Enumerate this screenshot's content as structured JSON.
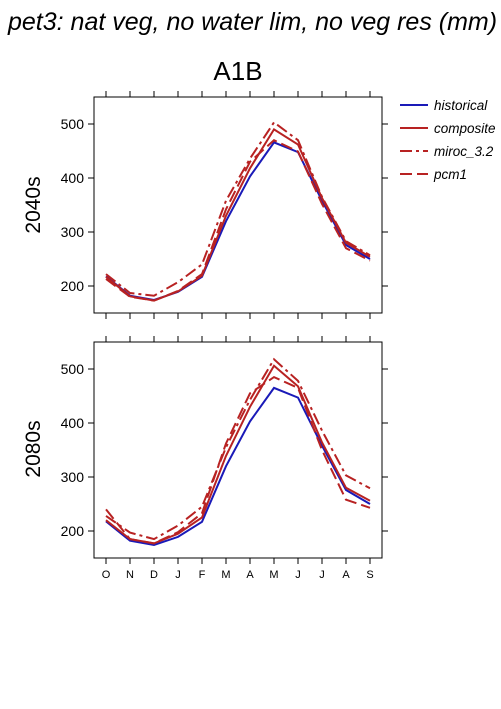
{
  "figure": {
    "title": "pet3: nat veg, no water lim, no veg res (mm)",
    "subtitle": "A1B"
  },
  "legend": {
    "placement": "right",
    "entries": [
      {
        "label": "historical",
        "color": "#1a1ab8",
        "style": "solid"
      },
      {
        "label": "composite",
        "color": "#b82222",
        "style": "solid"
      },
      {
        "label": "miroc_3.2",
        "color": "#b82222",
        "style": "dashdot"
      },
      {
        "label": "pcm1",
        "color": "#b82222",
        "style": "dashed"
      }
    ]
  },
  "chart_data": [
    {
      "type": "line",
      "panel_label": "2040s",
      "categories": [
        "O",
        "N",
        "D",
        "J",
        "F",
        "M",
        "A",
        "M",
        "J",
        "J",
        "A",
        "S"
      ],
      "ylim": [
        150,
        550
      ],
      "yticks": [
        200,
        300,
        400,
        500
      ],
      "grid": false,
      "series": [
        {
          "name": "historical",
          "color": "#1a1ab8",
          "style": "solid",
          "values": [
            218,
            182,
            174,
            189,
            217,
            320,
            403,
            466,
            448,
            358,
            276,
            250
          ]
        },
        {
          "name": "composite",
          "color": "#b82222",
          "style": "solid",
          "values": [
            217,
            181,
            173,
            190,
            219,
            330,
            418,
            490,
            462,
            363,
            280,
            254
          ]
        },
        {
          "name": "miroc_3.2",
          "color": "#b82222",
          "style": "dashdot",
          "values": [
            222,
            187,
            182,
            207,
            240,
            358,
            436,
            503,
            470,
            365,
            283,
            257
          ]
        },
        {
          "name": "pcm1",
          "color": "#b82222",
          "style": "dashed",
          "values": [
            213,
            180,
            173,
            191,
            222,
            342,
            430,
            470,
            449,
            352,
            270,
            247
          ]
        }
      ]
    },
    {
      "type": "line",
      "panel_label": "2080s",
      "categories": [
        "O",
        "N",
        "D",
        "J",
        "F",
        "M",
        "A",
        "M",
        "J",
        "J",
        "A",
        "S"
      ],
      "ylim": [
        150,
        550
      ],
      "yticks": [
        200,
        300,
        400,
        500
      ],
      "grid": false,
      "series": [
        {
          "name": "historical",
          "color": "#1a1ab8",
          "style": "solid",
          "values": [
            218,
            182,
            174,
            189,
            217,
            320,
            403,
            465,
            447,
            358,
            276,
            250
          ]
        },
        {
          "name": "composite",
          "color": "#b82222",
          "style": "solid",
          "values": [
            220,
            185,
            177,
            195,
            225,
            339,
            430,
            506,
            468,
            364,
            280,
            256
          ]
        },
        {
          "name": "miroc_3.2",
          "color": "#b82222",
          "style": "dashdot",
          "values": [
            228,
            197,
            185,
            210,
            245,
            355,
            443,
            518,
            478,
            386,
            303,
            279
          ]
        },
        {
          "name": "pcm1",
          "color": "#b82222",
          "style": "dashed",
          "values": [
            240,
            185,
            177,
            198,
            233,
            362,
            455,
            485,
            465,
            350,
            258,
            243
          ]
        }
      ]
    }
  ]
}
